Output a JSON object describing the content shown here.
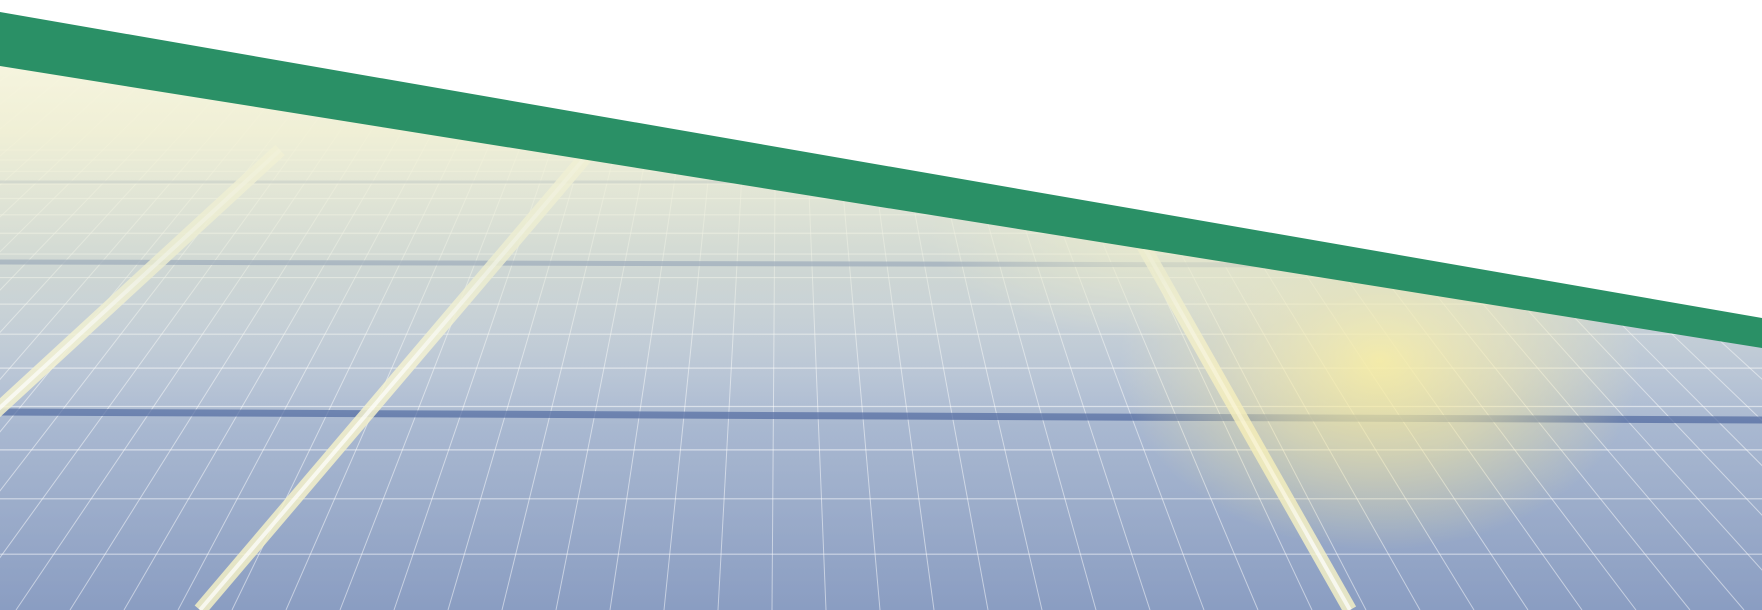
{
  "banner": {
    "subject": "solar-panel-array",
    "colors": {
      "accent_stripe": "#2a9066",
      "background": "#ffffff",
      "panel_cell": "#a9bcd1",
      "panel_cell_dark": "#7f93b6",
      "panel_frame": "#3d5a96",
      "sun_glow": "#f4e98a",
      "haze": "#f2f1dc"
    }
  }
}
